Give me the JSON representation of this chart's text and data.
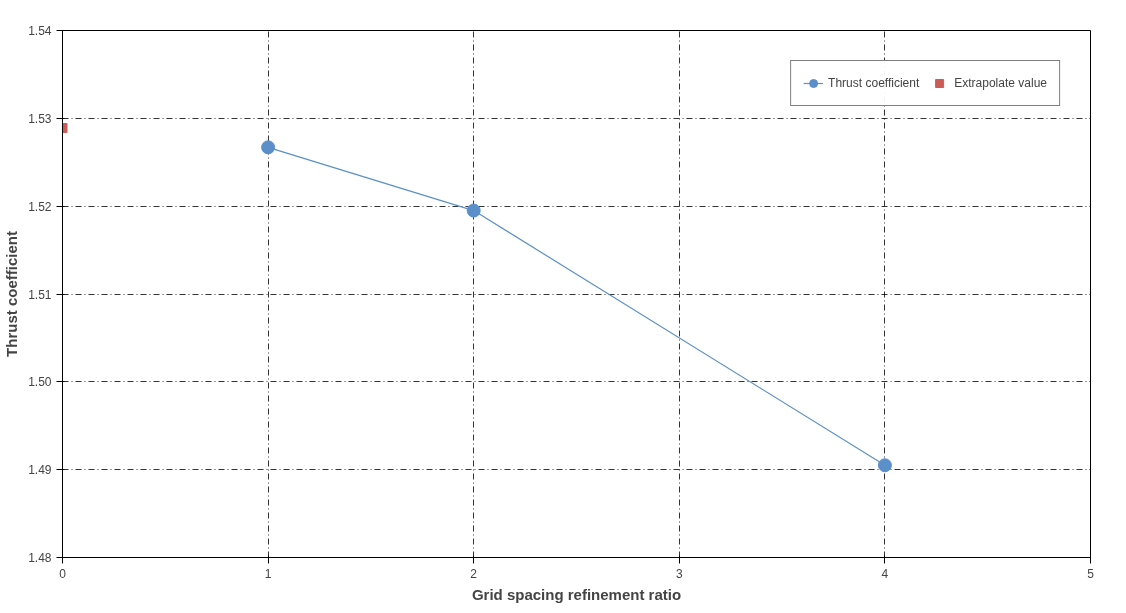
{
  "chart_data": {
    "type": "line",
    "xlabel": "Grid spacing refinement ratio",
    "ylabel": "Thrust coefficient",
    "series": [
      {
        "name": "Thrust coefficient",
        "color": "#5b8fc9",
        "x": [
          1,
          2,
          4
        ],
        "values": [
          1.5267,
          1.5195,
          1.4905
        ],
        "marker": "circle"
      },
      {
        "name": "Extrapolate value",
        "type": "scatter",
        "color": "#cd5c56",
        "x": [
          0
        ],
        "values": [
          1.5289
        ],
        "marker": "square"
      }
    ],
    "xlim": [
      0,
      5
    ],
    "xticks": [
      0,
      1,
      2,
      3,
      4,
      5
    ],
    "ylim": [
      1.48,
      1.54
    ],
    "yticks": [
      {
        "value": 1.48,
        "label": "1.48"
      },
      {
        "value": 1.49,
        "label": "1.49"
      },
      {
        "value": 1.5,
        "label": "1.50"
      },
      {
        "value": 1.51,
        "label": "1.51"
      },
      {
        "value": 1.52,
        "label": "1.52"
      },
      {
        "value": 1.53,
        "label": "1.53"
      },
      {
        "value": 1.54,
        "label": "1.54"
      }
    ],
    "grid": true,
    "legend": "top right"
  }
}
